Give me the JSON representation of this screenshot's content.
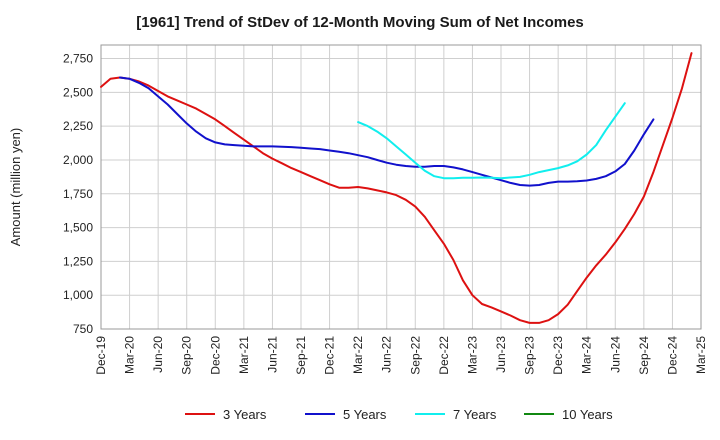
{
  "chart_data": {
    "type": "line",
    "title": "[1961]  Trend of StDev of 12-Month Moving Sum of Net Incomes",
    "ylabel": "Amount (million yen)",
    "xlabel": "",
    "ylim": [
      750,
      2850
    ],
    "yticks": [
      750,
      1000,
      1250,
      1500,
      1750,
      2000,
      2250,
      2500,
      2750
    ],
    "ytick_labels": [
      "750",
      "1,000",
      "1,250",
      "1,500",
      "1,750",
      "2,000",
      "2,250",
      "2,500",
      "2,750"
    ],
    "x_start": "Dec-19",
    "x_end": "Mar-25",
    "xtick_labels": [
      "Dec-19",
      "Mar-20",
      "Jun-20",
      "Sep-20",
      "Dec-20",
      "Mar-21",
      "Jun-21",
      "Sep-21",
      "Dec-21",
      "Mar-22",
      "Jun-22",
      "Sep-22",
      "Dec-22",
      "Mar-23",
      "Jun-23",
      "Sep-23",
      "Dec-23",
      "Mar-24",
      "Jun-24",
      "Sep-24",
      "Dec-24",
      "Mar-25"
    ],
    "grid": true,
    "legend_position": "bottom",
    "series": [
      {
        "name": "3 Years",
        "color": "#dd1111",
        "start": "Dec-19",
        "values": [
          2540,
          2600,
          2610,
          2600,
          2580,
          2550,
          2510,
          2470,
          2440,
          2410,
          2380,
          2340,
          2300,
          2250,
          2200,
          2150,
          2100,
          2050,
          2010,
          1975,
          1940,
          1910,
          1880,
          1850,
          1820,
          1795,
          1795,
          1800,
          1790,
          1775,
          1760,
          1740,
          1705,
          1655,
          1580,
          1480,
          1380,
          1260,
          1110,
          1000,
          935,
          910,
          880,
          850,
          815,
          795,
          795,
          815,
          860,
          930,
          1030,
          1130,
          1220,
          1300,
          1390,
          1490,
          1600,
          1730,
          1910,
          2110,
          2310,
          2530,
          2790
        ]
      },
      {
        "name": "5 Years",
        "color": "#1111cc",
        "start": "Dec-19",
        "values": [
          null,
          null,
          2610,
          2600,
          2570,
          2530,
          2470,
          2410,
          2340,
          2270,
          2210,
          2160,
          2130,
          2115,
          2110,
          2105,
          2100,
          2100,
          2100,
          2098,
          2095,
          2090,
          2085,
          2080,
          2070,
          2060,
          2050,
          2035,
          2020,
          2000,
          1980,
          1965,
          1955,
          1950,
          1950,
          1955,
          1955,
          1945,
          1930,
          1910,
          1890,
          1870,
          1850,
          1830,
          1815,
          1810,
          1815,
          1830,
          1840,
          1840,
          1843,
          1848,
          1860,
          1880,
          1915,
          1970,
          2070,
          2190,
          2300
        ]
      },
      {
        "name": "7 Years",
        "color": "#11eeee",
        "start": "Mar-22",
        "values": [
          2280,
          2250,
          2210,
          2160,
          2100,
          2040,
          1980,
          1920,
          1880,
          1865,
          1865,
          1868,
          1868,
          1870,
          1868,
          1865,
          1870,
          1875,
          1890,
          1910,
          1925,
          1940,
          1960,
          1990,
          2040,
          2110,
          2220,
          2320,
          2420
        ]
      },
      {
        "name": "10 Years",
        "color": "#118811",
        "start": "Dec-19",
        "values": []
      }
    ]
  }
}
